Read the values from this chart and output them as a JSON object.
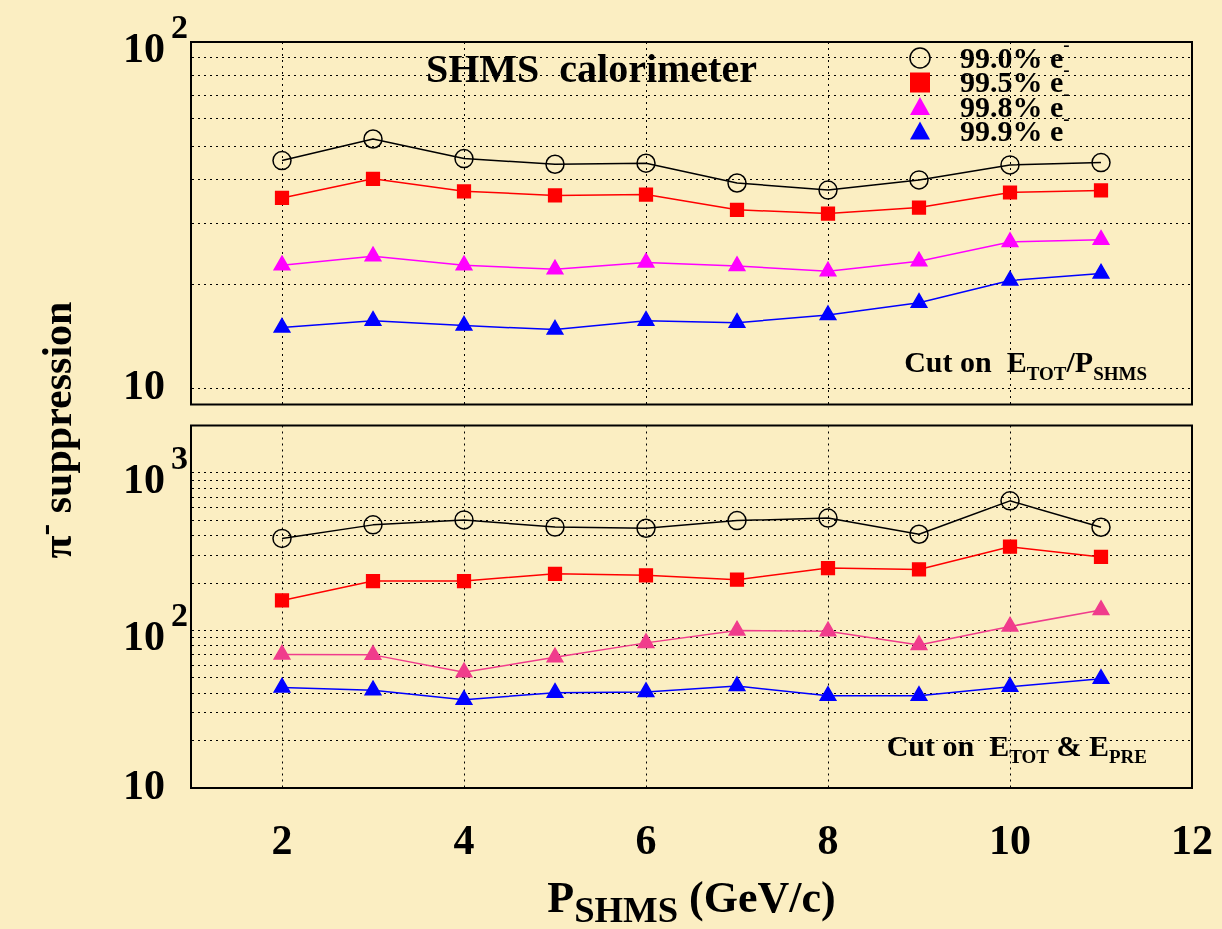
{
  "chart_data": [
    {
      "type": "line",
      "title": "SHMS  calorimeter",
      "ylabel": "π$^{-}$ suppression",
      "annotations": [
        "Cut on  E$_{TOT}$/P$_{SHMS}$"
      ],
      "x": [
        2,
        3,
        4,
        5,
        6,
        7,
        8,
        9,
        10,
        11
      ],
      "series": [
        {
          "name": "99.0% e$^{-}$",
          "color": "#000000",
          "marker": "circle",
          "values": [
            45.5,
            52.5,
            46.1,
            44.4,
            44.7,
            39.2,
            37.4,
            40.0,
            44.2,
            44.9
          ]
        },
        {
          "name": "99.5% e$^{-}$",
          "color": "#ff0000",
          "marker": "square",
          "values": [
            35.5,
            40.3,
            37.1,
            36.1,
            36.3,
            32.8,
            32.0,
            33.3,
            36.8,
            37.3
          ]
        },
        {
          "name": "99.8% e$^{-}$",
          "color": "#ff00ff",
          "marker": "triangle",
          "values": [
            22.7,
            24.1,
            22.7,
            22.1,
            23.1,
            22.6,
            21.8,
            23.3,
            26.5,
            26.9
          ]
        },
        {
          "name": "99.9% e$^{-}$",
          "color": "#0000ff",
          "marker": "triangle",
          "values": [
            15.0,
            15.7,
            15.2,
            14.8,
            15.7,
            15.5,
            16.3,
            17.7,
            20.5,
            21.5
          ]
        }
      ],
      "xlim": [
        1,
        12
      ],
      "xticks": [
        2,
        4,
        6,
        8,
        10,
        12
      ],
      "log": "y",
      "ylim": [
        9,
        100
      ],
      "yticks": [
        10,
        {
          "value": 20,
          "label": null
        },
        {
          "value": 30,
          "label": null
        },
        {
          "value": 40,
          "label": null
        },
        {
          "value": 50,
          "label": null
        },
        {
          "value": 60,
          "label": null
        },
        {
          "value": 70,
          "label": null
        },
        {
          "value": 80,
          "label": null
        },
        {
          "value": 90,
          "label": null
        },
        {
          "value": 100,
          "label": "10$^{2}$"
        }
      ],
      "grid": true,
      "legend": "top right",
      "tick_labels": "y"
    },
    {
      "type": "line",
      "xlabel": "P$_{SHMS}$ (GeV/c)",
      "annotations": [
        "Cut on  E$_{TOT}$ & E$_{PRE}$"
      ],
      "x": [
        2,
        3,
        4,
        5,
        6,
        7,
        8,
        9,
        10,
        11
      ],
      "series": [
        {
          "color": "#000000",
          "marker": "circle",
          "values": [
            384,
            468,
            503,
            453,
            445,
            498,
            517,
            408,
            665,
            452
          ]
        },
        {
          "color": "#ff0000",
          "marker": "square",
          "values": [
            155,
            206,
            206,
            229,
            224,
            210,
            249,
            244,
            340,
            293
          ]
        },
        {
          "color": "#f03c8c",
          "marker": "triangle",
          "values": [
            70.5,
            70,
            54.3,
            67.6,
            83.4,
            100,
            99,
            80.9,
            106,
            135
          ]
        },
        {
          "color": "#0000ff",
          "marker": "triangle",
          "values": [
            43.5,
            41.8,
            36.3,
            40.3,
            40.7,
            44.4,
            38.5,
            38.5,
            43.9,
            49.3
          ]
        }
      ],
      "xlim": [
        1,
        12
      ],
      "xticks": [
        2,
        4,
        6,
        8,
        10,
        12
      ],
      "log": "y",
      "ylim": [
        10,
        2000
      ],
      "yticks": [
        10,
        {
          "value": 20,
          "label": null
        },
        {
          "value": 30,
          "label": null
        },
        {
          "value": 40,
          "label": null
        },
        {
          "value": 50,
          "label": null
        },
        {
          "value": 60,
          "label": null
        },
        {
          "value": 70,
          "label": null
        },
        {
          "value": 80,
          "label": null
        },
        {
          "value": 90,
          "label": null
        },
        {
          "value": 100,
          "label": "10$^{2}$"
        },
        {
          "value": 200,
          "label": null
        },
        {
          "value": 300,
          "label": null
        },
        {
          "value": 400,
          "label": null
        },
        {
          "value": 500,
          "label": null
        },
        {
          "value": 600,
          "label": null
        },
        {
          "value": 700,
          "label": null
        },
        {
          "value": 800,
          "label": null
        },
        {
          "value": 900,
          "label": null
        },
        {
          "value": 1000,
          "label": "10$^{3}$"
        }
      ],
      "grid": true
    }
  ]
}
